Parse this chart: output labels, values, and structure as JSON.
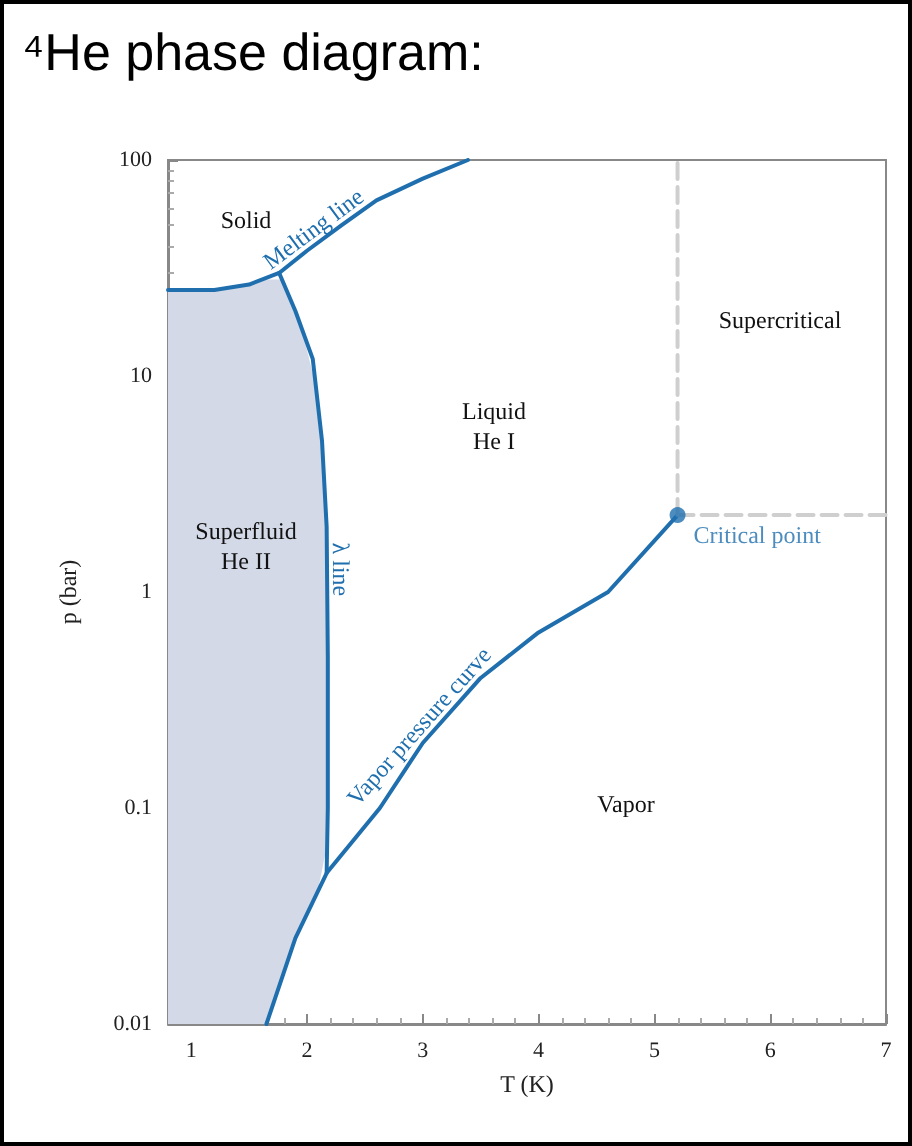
{
  "chart_data": {
    "type": "line",
    "title": "⁴He phase diagram:",
    "xlabel": "T (K)",
    "ylabel": "p (bar)",
    "xlim": [
      0.8,
      7
    ],
    "xticks": [
      1,
      2,
      3,
      4,
      5,
      6,
      7
    ],
    "ylim": [
      0.01,
      100
    ],
    "yticks": [
      0.01,
      0.1,
      1,
      10,
      100
    ],
    "log": "y",
    "marker": "none",
    "line_style": "solid",
    "series": [
      {
        "name": "Melting line",
        "color": "#1f6fae",
        "x": [
          0.8,
          1.2,
          1.5,
          1.76,
          2.0,
          2.3,
          2.6,
          3.0,
          3.39
        ],
        "values": [
          25,
          25,
          26.5,
          30,
          38,
          50,
          65,
          82,
          100
        ]
      },
      {
        "name": "λ line",
        "color": "#1f6fae",
        "x": [
          1.76,
          1.9,
          2.05,
          2.13,
          2.17,
          2.18,
          2.18,
          2.17
        ],
        "values": [
          30,
          20,
          12,
          5,
          2,
          0.5,
          0.1,
          0.05
        ]
      },
      {
        "name": "Vapor pressure curve",
        "color": "#1f6fae",
        "x": [
          1.65,
          1.9,
          2.17,
          2.63,
          3.0,
          3.5,
          4.0,
          4.6,
          5.2
        ],
        "values": [
          0.01,
          0.025,
          0.05,
          0.1,
          0.2,
          0.4,
          0.65,
          1.0,
          2.27
        ]
      },
      {
        "type": "line",
        "color": "#cfcfcf",
        "line_style": "dashed",
        "x": [
          5.2,
          5.2
        ],
        "values": [
          2.27,
          100
        ]
      },
      {
        "type": "line",
        "color": "#cfcfcf",
        "line_style": "dashed",
        "x": [
          5.2,
          7
        ],
        "values": [
          2.27,
          2.27
        ]
      },
      {
        "type": "scatter",
        "name": "Critical point",
        "color": "#1f6fae",
        "marker": "circle",
        "x": [
          5.2
        ],
        "values": [
          2.27
        ]
      },
      {
        "type": "area",
        "color": "#d3d9e7",
        "x": [
          0.8,
          1.0,
          1.35,
          1.65,
          1.8,
          1.95,
          2.1,
          2.15,
          2.18,
          2.18,
          2.1,
          1.95,
          1.8,
          1.65,
          0.8
        ],
        "values": [
          25,
          25,
          25.8,
          28,
          28,
          17,
          8,
          3.5,
          1,
          0.07,
          0.043,
          0.028,
          0.017,
          0.01,
          0.01
        ]
      }
    ],
    "annotations": [
      "Solid",
      "Liquid\nHe I",
      "Supercritical",
      "Superfluid\nHe II",
      "Vapor"
    ]
  }
}
